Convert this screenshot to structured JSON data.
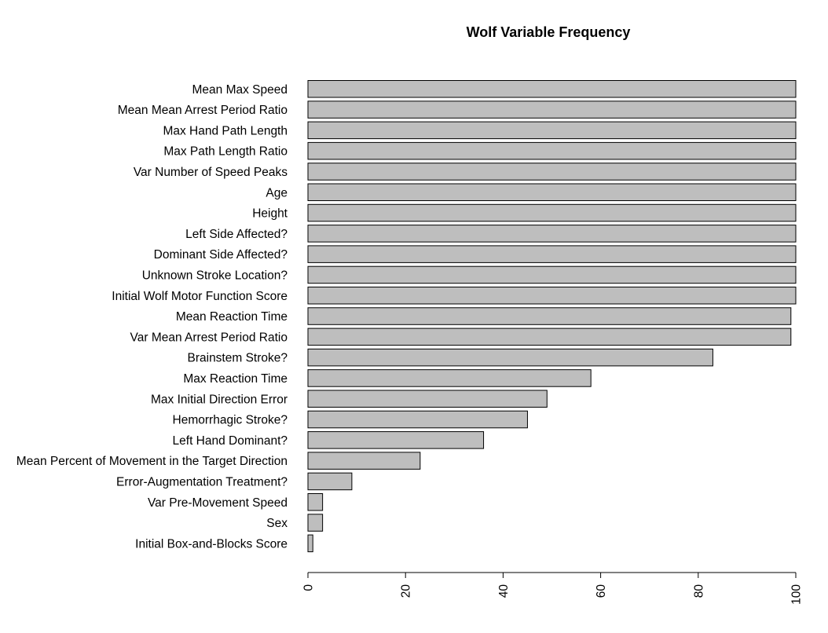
{
  "chart_data": {
    "type": "bar",
    "orientation": "horizontal",
    "title": "Wolf Variable Frequency",
    "xlabel": "",
    "ylabel": "",
    "xlim": [
      0,
      100
    ],
    "xticks": [
      0,
      20,
      40,
      60,
      80,
      100
    ],
    "grid": false,
    "bar_color": "#bebebe",
    "categories": [
      "Mean Max Speed",
      "Mean Mean Arrest Period Ratio",
      "Max Hand Path Length",
      "Max Path Length Ratio",
      "Var Number of Speed Peaks",
      "Age",
      "Height",
      "Left Side Affected?",
      "Dominant Side Affected?",
      "Unknown Stroke Location?",
      "Initial Wolf Motor Function Score",
      "Mean Reaction Time",
      "Var Mean Arrest Period Ratio",
      "Brainstem Stroke?",
      "Max Reaction Time",
      "Max Initial Direction Error",
      "Hemorrhagic Stroke?",
      "Left Hand Dominant?",
      "Mean Percent of Movement in the Target Direction",
      "Error-Augmentation Treatment?",
      "Var Pre-Movement Speed",
      "Sex",
      "Initial Box-and-Blocks Score"
    ],
    "values": [
      100,
      100,
      100,
      100,
      100,
      100,
      100,
      100,
      100,
      100,
      100,
      99,
      99,
      83,
      58,
      49,
      45,
      36,
      23,
      9,
      3,
      3,
      1
    ]
  }
}
